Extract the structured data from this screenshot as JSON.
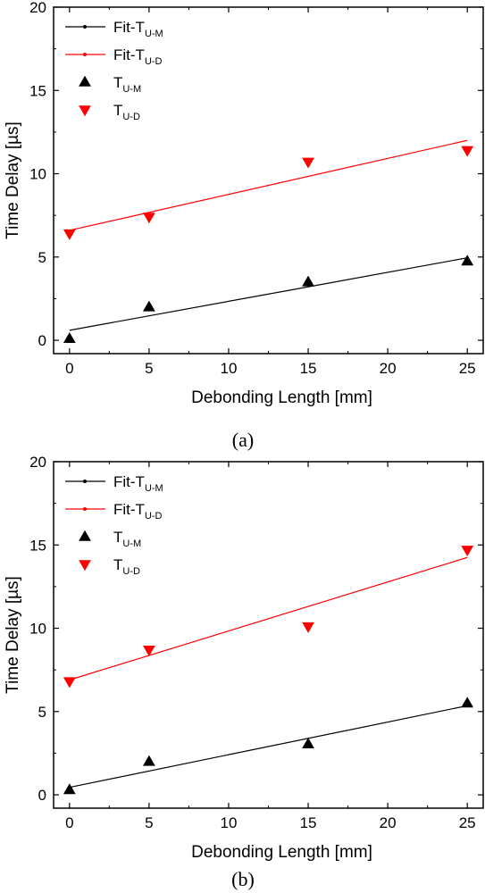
{
  "chart_data": [
    {
      "type": "scatter",
      "caption": "(a)",
      "xlabel": "Debonding Length [mm]",
      "ylabel": "Time Delay [µs]",
      "xlim": [
        -1,
        26
      ],
      "ylim": [
        -0.8,
        20
      ],
      "xticks": [
        "0",
        "5",
        "10",
        "15",
        "20",
        "25"
      ],
      "yticks": [
        "0",
        "5",
        "10",
        "15",
        "20"
      ],
      "legend": [
        {
          "main": "Fit-T",
          "sub": "U-M"
        },
        {
          "main": "Fit-T",
          "sub": "U-D"
        },
        {
          "main": "T",
          "sub": "U-M"
        },
        {
          "main": "T",
          "sub": "U-D"
        }
      ],
      "legend_position": "top-left",
      "series": [
        {
          "name": "Fit-TU-M",
          "kind": "line",
          "color": "#000000",
          "x": [
            0,
            25
          ],
          "y": [
            0.6,
            4.95
          ]
        },
        {
          "name": "Fit-TU-D",
          "kind": "line",
          "color": "#ff0000",
          "x": [
            0,
            25
          ],
          "y": [
            6.6,
            12.0
          ]
        },
        {
          "name": "TU-M",
          "kind": "marker",
          "marker": "triangle-up",
          "color": "#000000",
          "x": [
            0,
            5,
            15,
            25
          ],
          "y": [
            0.1,
            2.0,
            3.5,
            4.75
          ]
        },
        {
          "name": "TU-D",
          "kind": "marker",
          "marker": "triangle-down",
          "color": "#ff0000",
          "x": [
            0,
            5,
            15,
            25
          ],
          "y": [
            6.4,
            7.4,
            10.7,
            11.4
          ]
        }
      ]
    },
    {
      "type": "scatter",
      "caption": "(b)",
      "xlabel": "Debonding Length [mm]",
      "ylabel": "Time Delay [µs]",
      "xlim": [
        -1,
        26
      ],
      "ylim": [
        -0.8,
        20
      ],
      "xticks": [
        "0",
        "5",
        "10",
        "15",
        "20",
        "25"
      ],
      "yticks": [
        "0",
        "5",
        "10",
        "15",
        "20"
      ],
      "legend": [
        {
          "main": "Fit-T",
          "sub": "U-M"
        },
        {
          "main": "Fit-T",
          "sub": "U-D"
        },
        {
          "main": "T",
          "sub": "U-M"
        },
        {
          "main": "T",
          "sub": "U-D"
        }
      ],
      "legend_position": "top-left",
      "series": [
        {
          "name": "Fit-TU-M",
          "kind": "line",
          "color": "#000000",
          "x": [
            0,
            25
          ],
          "y": [
            0.45,
            5.35
          ]
        },
        {
          "name": "Fit-TU-D",
          "kind": "line",
          "color": "#ff0000",
          "x": [
            0,
            25
          ],
          "y": [
            6.9,
            14.25
          ]
        },
        {
          "name": "TU-M",
          "kind": "marker",
          "marker": "triangle-up",
          "color": "#000000",
          "x": [
            0,
            5,
            15,
            25
          ],
          "y": [
            0.3,
            2.0,
            3.05,
            5.5
          ]
        },
        {
          "name": "TU-D",
          "kind": "marker",
          "marker": "triangle-down",
          "color": "#ff0000",
          "x": [
            0,
            5,
            15,
            25
          ],
          "y": [
            6.8,
            8.7,
            10.1,
            14.7
          ]
        }
      ]
    }
  ]
}
